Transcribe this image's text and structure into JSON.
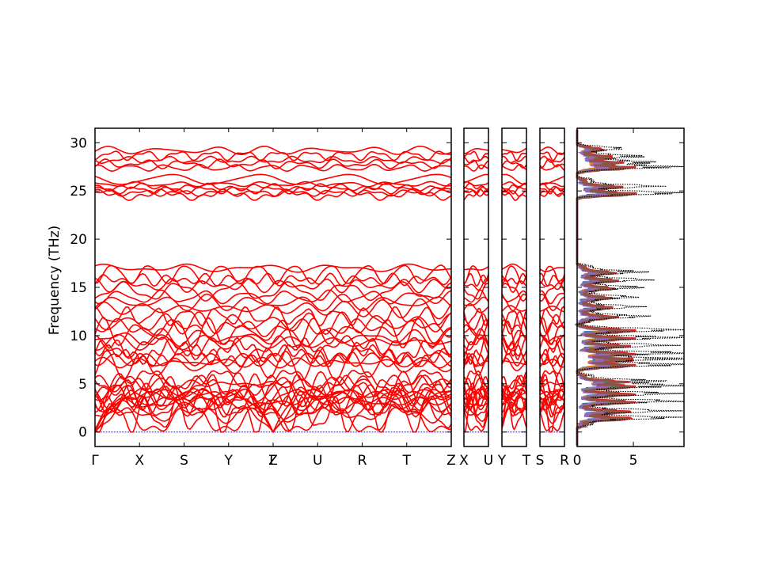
{
  "chart_data": {
    "type": "line",
    "title": "",
    "ylabel": "Frequency (THz)",
    "ylim": [
      -1.5,
      31.5
    ],
    "yticks": [
      0,
      5,
      10,
      15,
      20,
      25,
      30
    ],
    "grid": false,
    "legend": "none",
    "colors": {
      "band": "#ff0000",
      "zero_line": "#0000ff",
      "dos_total": "#000000",
      "pdos": [
        "#1f77b4",
        "#ff7f0e",
        "#2ca02c",
        "#d62728",
        "#9467bd",
        "#8c564b"
      ]
    },
    "band_panels": [
      {
        "path_labels": [
          "Γ",
          "X",
          "S",
          "Y",
          "Γ",
          "Z",
          "U",
          "R",
          "T",
          "Z"
        ],
        "seg_lengths": [
          1,
          1,
          1,
          1,
          0,
          1,
          1,
          1,
          1
        ]
      },
      {
        "path_labels": [
          "X",
          "U"
        ],
        "seg_lengths": [
          1
        ]
      },
      {
        "path_labels": [
          "Y",
          "T"
        ],
        "seg_lengths": [
          1
        ]
      },
      {
        "path_labels": [
          "S",
          "R"
        ],
        "seg_lengths": [
          1
        ]
      }
    ],
    "band_frequencies_at_gamma": [
      0,
      0,
      0,
      1.3,
      1.7,
      2.1,
      2.5,
      2.9,
      3.2,
      3.5,
      3.8,
      4.1,
      4.4,
      4.7,
      5.0,
      5.2,
      6.9,
      7.2,
      7.5,
      7.9,
      8.4,
      8.8,
      9.3,
      9.8,
      10.3,
      10.8,
      11.3,
      12.0,
      12.8,
      13.4,
      14.0,
      14.6,
      15.2,
      15.8,
      16.4,
      17.0,
      24.6,
      24.8,
      25.1,
      25.4,
      25.7,
      26.2,
      27.4,
      27.8,
      28.2,
      28.7,
      29.2
    ],
    "dos": {
      "xlim": [
        0,
        9.5
      ],
      "xticks": [
        0,
        5
      ],
      "bands": [
        {
          "range": [
            0.5,
            6.2
          ],
          "peaks": [
            [
              1.5,
              8.2
            ],
            [
              2.2,
              7.9
            ],
            [
              3.2,
              8.8
            ],
            [
              4.0,
              8.5
            ],
            [
              4.8,
              9.4
            ],
            [
              5.3,
              7.0
            ]
          ]
        },
        {
          "range": [
            6.4,
            11.2
          ],
          "peaks": [
            [
              7.0,
              9.4
            ],
            [
              7.6,
              9.0
            ],
            [
              8.2,
              9.4
            ],
            [
              9.0,
              7.8
            ],
            [
              9.8,
              8.6
            ],
            [
              10.6,
              9.3
            ]
          ]
        },
        {
          "range": [
            11.2,
            17.5
          ],
          "peaks": [
            [
              12.0,
              5.4
            ],
            [
              13.0,
              4.7
            ],
            [
              14.0,
              4.3
            ],
            [
              15.0,
              4.9
            ],
            [
              15.8,
              5.6
            ],
            [
              16.6,
              5.1
            ]
          ]
        },
        {
          "range": [
            24.3,
            26.5
          ],
          "peaks": [
            [
              24.8,
              9.5
            ],
            [
              25.5,
              6.5
            ]
          ]
        },
        {
          "range": [
            26.9,
            29.9
          ],
          "peaks": [
            [
              27.5,
              8.6
            ],
            [
              28.0,
              6.2
            ],
            [
              28.6,
              5.0
            ],
            [
              29.4,
              3.0
            ]
          ]
        }
      ]
    }
  }
}
